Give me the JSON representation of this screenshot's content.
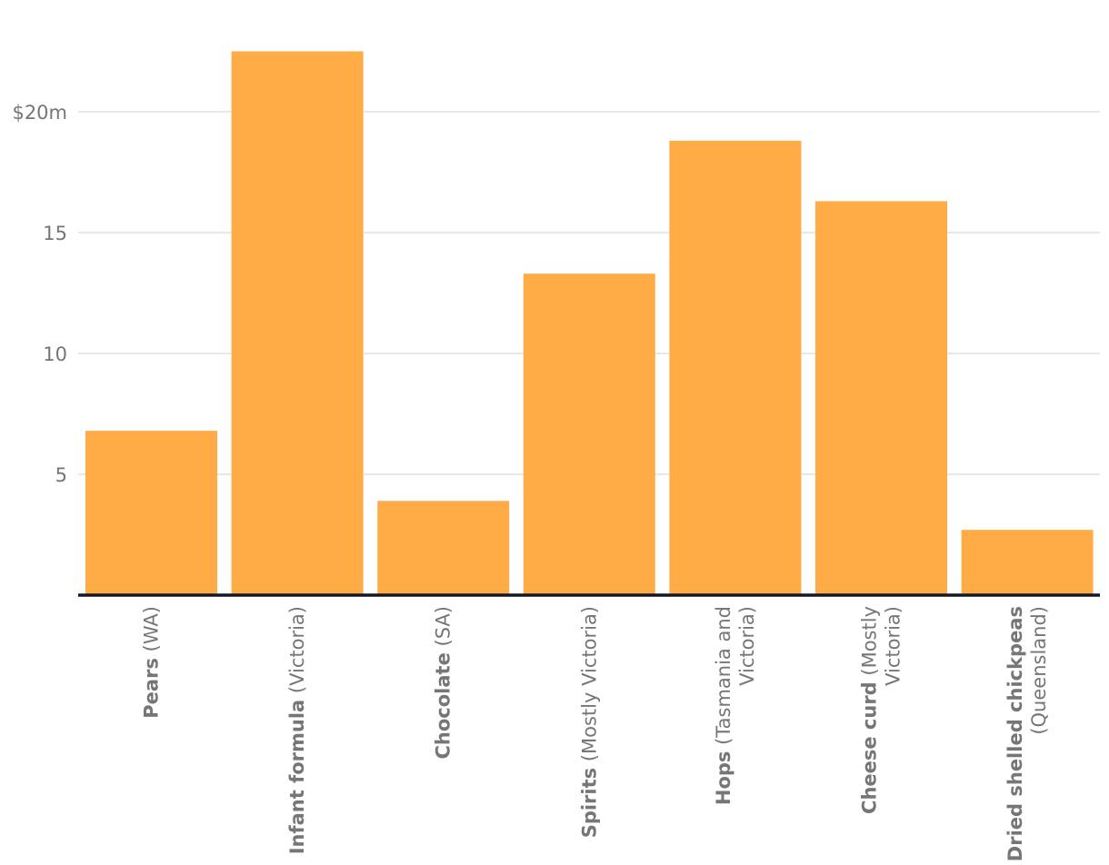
{
  "chart_data": {
    "type": "bar",
    "title": "",
    "xlabel": "",
    "ylabel": "",
    "ylim": [
      0,
      23
    ],
    "yticks": [
      {
        "value": 5,
        "label": "5"
      },
      {
        "value": 10,
        "label": "10"
      },
      {
        "value": 15,
        "label": "15"
      },
      {
        "value": 20,
        "label": "$20m"
      }
    ],
    "grid": true,
    "colors": {
      "bar": "#ffac47",
      "axis": "#111827",
      "grid": "#e1e1e1",
      "text": "#767676"
    },
    "categories": [
      {
        "bold": "Pears",
        "rest": "(WA)",
        "lines": [
          [
            "Pears",
            " (WA)"
          ]
        ]
      },
      {
        "bold": "Infant formula",
        "rest": "(Victoria)",
        "lines": [
          [
            "Infant formula",
            " (Victoria)"
          ]
        ]
      },
      {
        "bold": "Chocolate",
        "rest": "(SA)",
        "lines": [
          [
            "Chocolate",
            " (SA)"
          ]
        ]
      },
      {
        "bold": "Spirits",
        "rest": "(Mostly Victoria)",
        "lines": [
          [
            "Spirits",
            " (Mostly Victoria)"
          ]
        ]
      },
      {
        "bold": "Hops",
        "rest": "(Tasmania and Victoria)",
        "lines": [
          [
            "Hops",
            " (Tasmania and"
          ],
          [
            "",
            "Victoria)"
          ]
        ]
      },
      {
        "bold": "Cheese curd",
        "rest": "(Mostly Victoria)",
        "lines": [
          [
            "Cheese curd",
            " (Mostly"
          ],
          [
            "",
            "Victoria)"
          ]
        ]
      },
      {
        "bold": "Dried shelled chickpeas",
        "rest": "(Queensland)",
        "lines": [
          [
            "Dried shelled chickpeas",
            ""
          ],
          [
            "",
            "(Queensland)"
          ]
        ]
      }
    ],
    "values": [
      6.8,
      22.5,
      3.9,
      13.3,
      18.8,
      16.3,
      2.7
    ]
  }
}
